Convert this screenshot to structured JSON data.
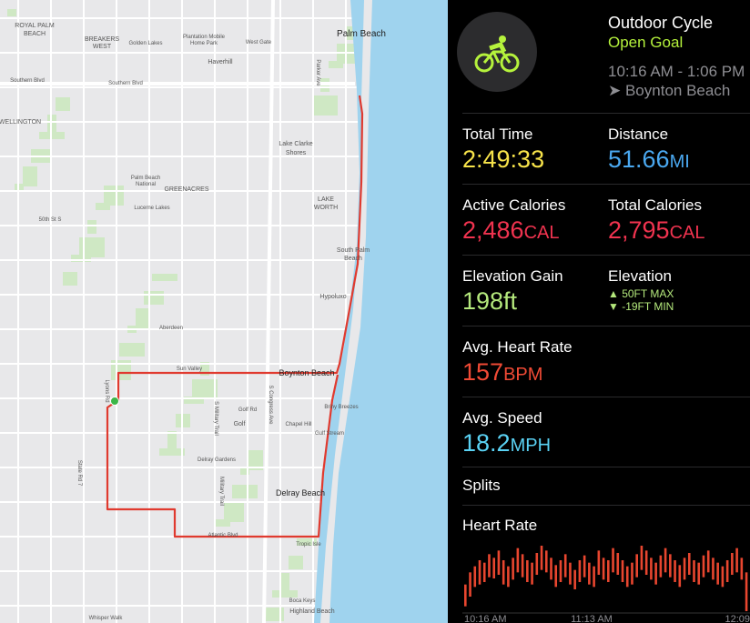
{
  "header": {
    "title": "Outdoor Cycle",
    "goal": "Open Goal",
    "time": "10:16 AM - 1:06 PM",
    "location": "Boynton Beach"
  },
  "metrics": [
    {
      "label": "Total Time",
      "value": "2:49:33"
    },
    {
      "label": "Distance",
      "value": "51.66",
      "unit": "MI"
    },
    {
      "label": "Active Calories",
      "value": "2,486",
      "unit": "CAL"
    },
    {
      "label": "Total Calories",
      "value": "2,795",
      "unit": "CAL"
    },
    {
      "label": "Elevation Gain",
      "value": "198ft"
    },
    {
      "label": "Elevation",
      "max": "▲ 50FT MAX",
      "min": "▼ -19FT MIN"
    },
    {
      "label": "Avg. Heart Rate",
      "value": "157",
      "unit": "BPM"
    },
    {
      "label": "Avg. Speed",
      "value": "18.2",
      "unit": "MPH"
    }
  ],
  "sections": {
    "splits": "Splits",
    "heart_rate": "Heart Rate"
  },
  "heart_rate": {
    "x_labels": [
      "10:16 AM",
      "11:13 AM",
      "12:09"
    ],
    "max": [
      150,
      160,
      165,
      170,
      168,
      175,
      172,
      178,
      170,
      165,
      172,
      180,
      175,
      170,
      168,
      176,
      182,
      178,
      172,
      166,
      170,
      175,
      168,
      162,
      170,
      174,
      168,
      165,
      178,
      172,
      170,
      180,
      176,
      170,
      165,
      168,
      175,
      182,
      178,
      172,
      168,
      174,
      180,
      175,
      170,
      166,
      172,
      176,
      170,
      168,
      174,
      178,
      172,
      168,
      165,
      170,
      176,
      180,
      172,
      160
    ],
    "min": [
      132,
      140,
      148,
      150,
      152,
      156,
      155,
      158,
      150,
      148,
      154,
      160,
      156,
      152,
      150,
      158,
      162,
      160,
      154,
      148,
      152,
      156,
      150,
      146,
      152,
      156,
      150,
      148,
      158,
      154,
      152,
      160,
      158,
      152,
      148,
      150,
      156,
      162,
      158,
      154,
      150,
      156,
      160,
      156,
      152,
      148,
      154,
      158,
      152,
      150,
      156,
      160,
      154,
      150,
      148,
      152,
      158,
      160,
      154,
      128
    ]
  },
  "map": {
    "labels": [
      "Palm Beach",
      "ROYAL PALM",
      "BEACH",
      "BREAKERS",
      "WEST",
      "Golden Lakes",
      "Plantation Mobile",
      "Home Park",
      "West Gate",
      "Haverhill",
      "Southern Blvd",
      "Southern Blvd",
      "Parker Ave",
      "WELLINGTON",
      "Lake Clarke",
      "Shores",
      "Palm Beach",
      "National",
      "GREENACRES",
      "LAKE",
      "WORTH",
      "Lucerne Lakes",
      "50th St S",
      "South Palm",
      "Beach",
      "Hypoluxo",
      "Aberdeen",
      "Sun Valley",
      "Boynton Beach",
      "Briny Breezes",
      "Golf Rd",
      "Golf",
      "Chapel Hill",
      "Gulf Stream",
      "Delray Gardens",
      "Delray Beach",
      "Atlantic Blvd",
      "Tropic Isle",
      "Boca Keys",
      "Highland Beach",
      "Whisper Walk",
      "Lyons Rd",
      "State Rd 7",
      "S Military Trail",
      "S Congress Ave",
      "Military Trail"
    ]
  }
}
